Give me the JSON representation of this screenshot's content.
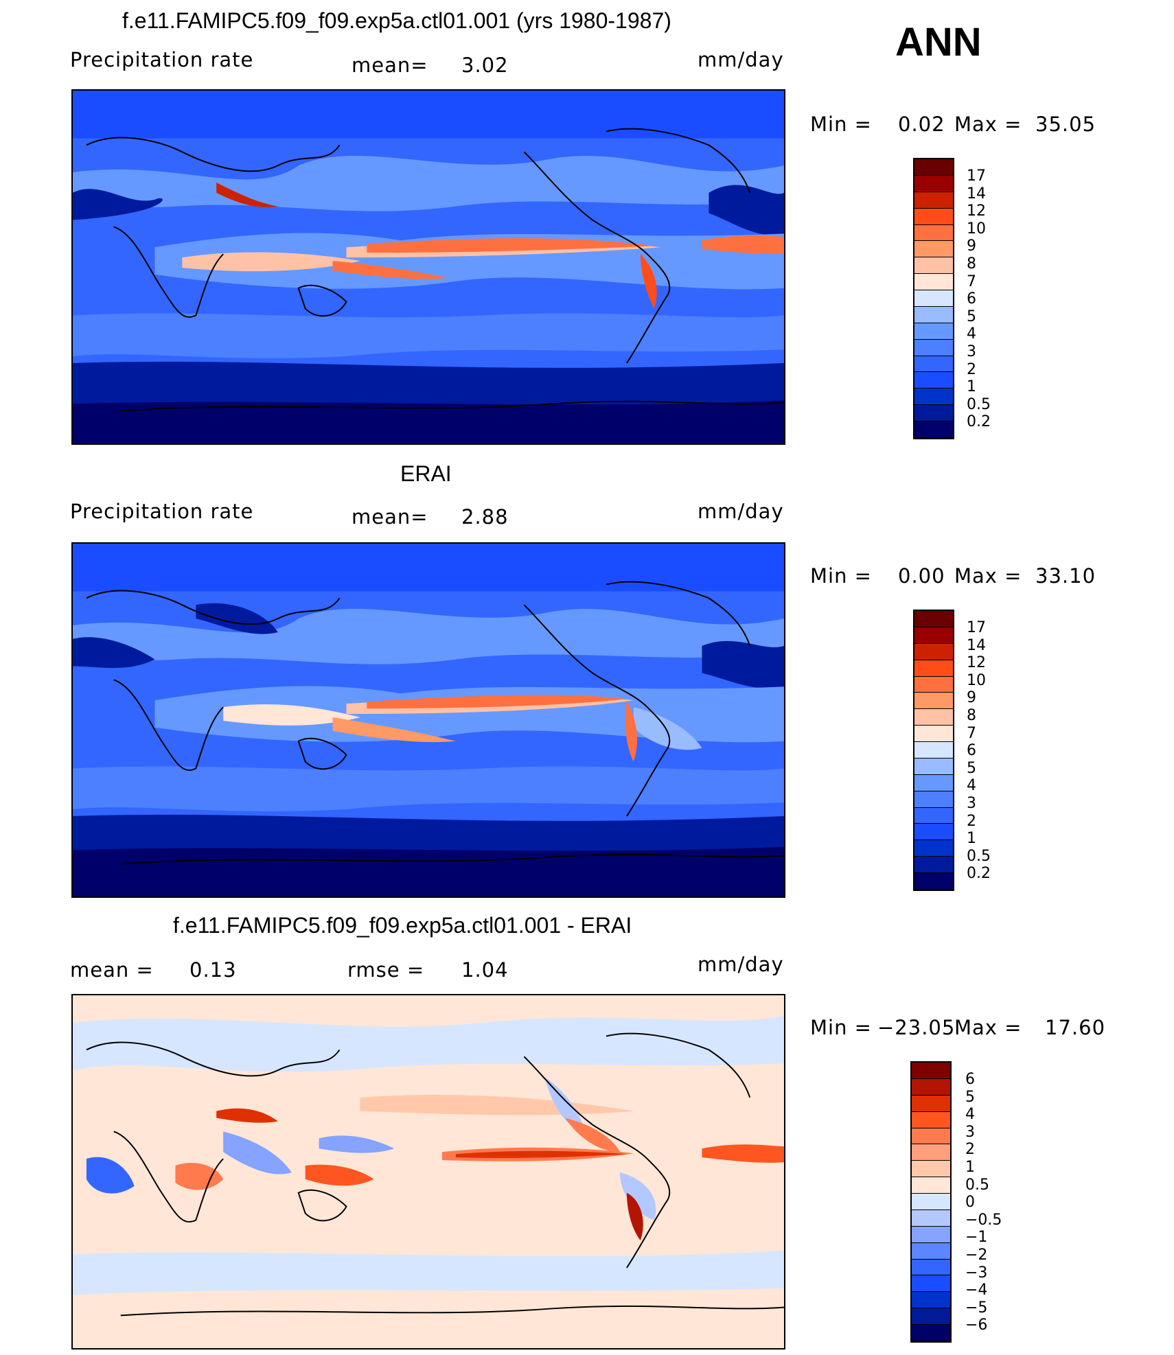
{
  "season": "ANN",
  "units": "mm/day",
  "colors": {
    "abs_scale": [
      "#00006a",
      "#001a9e",
      "#0033cc",
      "#1a4dff",
      "#3366ff",
      "#4d80ff",
      "#6699ff",
      "#99bbff",
      "#d6e6ff",
      "#ffe6d6",
      "#ffc2a6",
      "#ff9966",
      "#ff7040",
      "#ff4d1a",
      "#cc2200",
      "#990000",
      "#6a0000"
    ],
    "diff_scale": [
      "#000066",
      "#001a99",
      "#0033cc",
      "#1a4dff",
      "#3366ff",
      "#5c85ff",
      "#85a3ff",
      "#b3c8ff",
      "#d6e6ff",
      "#ffe6d6",
      "#ffc8aa",
      "#ffa07a",
      "#ff7a4d",
      "#ff5520",
      "#e03000",
      "#b31500",
      "#800000"
    ]
  },
  "panels": [
    {
      "title": "f.e11.FAMIPC5.f09_f09.exp5a.ctl01.001 (yrs 1980-1987)",
      "left_label": "Precipitation  rate",
      "center_label": "mean=",
      "center_value": "3.02",
      "min_label": "Min  =",
      "min_value": "0.02",
      "max_label": "Max  =",
      "max_value": "35.05",
      "ticks": [
        "17",
        "14",
        "12",
        "10",
        "9",
        "8",
        "7",
        "6",
        "5",
        "4",
        "3",
        "2",
        "1",
        "0.5",
        "0.2"
      ]
    },
    {
      "title": "ERAI",
      "left_label": "Precipitation  rate",
      "center_label": "mean=",
      "center_value": "2.88",
      "min_label": "Min  =",
      "min_value": "0.00",
      "max_label": "Max  =",
      "max_value": "33.10",
      "ticks": [
        "17",
        "14",
        "12",
        "10",
        "9",
        "8",
        "7",
        "6",
        "5",
        "4",
        "3",
        "2",
        "1",
        "0.5",
        "0.2"
      ]
    },
    {
      "title": "f.e11.FAMIPC5.f09_f09.exp5a.ctl01.001 - ERAI",
      "left_label": "mean  =",
      "left_value": "0.13",
      "center_label": "rmse  =",
      "center_value": "1.04",
      "min_label": "Min  =",
      "min_value": "−23.05",
      "max_label": "Max  =",
      "max_value": "17.60",
      "ticks": [
        "6",
        "5",
        "4",
        "3",
        "2",
        "1",
        "0.5",
        "0",
        "−0.5",
        "−1",
        "−2",
        "−3",
        "−4",
        "−5",
        "−6"
      ]
    }
  ]
}
